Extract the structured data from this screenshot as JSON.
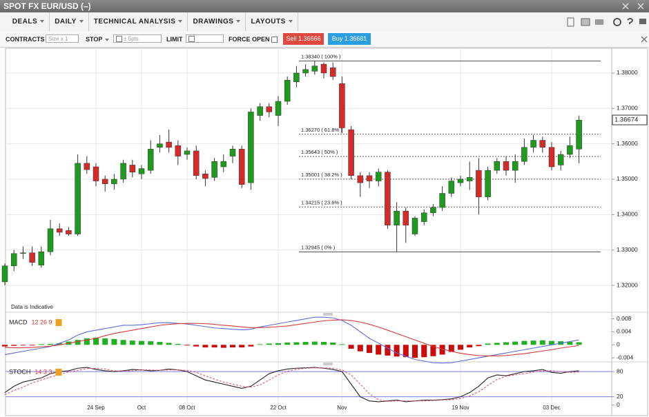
{
  "window": {
    "title": "SPOT FX EUR/USD (–)"
  },
  "menu": [
    "DEALS",
    "DAILY",
    "TECHNICAL ANALYSIS",
    "DRAWINGS",
    "LAYOUTS"
  ],
  "order_bar": {
    "contracts_label": "CONTRACTS",
    "size_placeholder": "Size x 1",
    "stop_label": "STOP",
    "stop_placeholder": "± 5pts",
    "limit_label": "LIMIT",
    "force_open_label": "FORCE OPEN",
    "sell_button": "Sell 1.36666",
    "buy_button": "Buy 1.36681"
  },
  "chart_data": [
    {
      "type": "candlestick",
      "annotation": "Data is Indicative",
      "grid": true,
      "up_color": "#1f9a1f",
      "down_color": "#d42a2a",
      "categories": [
        null,
        null,
        null,
        null,
        null,
        null,
        null,
        null,
        null,
        null,
        "24 Sep",
        null,
        null,
        null,
        null,
        "Oct",
        null,
        null,
        null,
        null,
        "08 Oct",
        null,
        null,
        null,
        null,
        null,
        null,
        null,
        null,
        null,
        "22 Oct",
        null,
        null,
        null,
        null,
        null,
        null,
        "Nov",
        null,
        null,
        null,
        null,
        null,
        null,
        null,
        null,
        null,
        null,
        null,
        null,
        "19 Nov",
        null,
        null,
        null,
        null,
        null,
        null,
        null,
        null,
        null,
        "03 Dec",
        null,
        null,
        null
      ],
      "open": [
        1.321,
        1.3255,
        1.329,
        1.3292,
        1.3257,
        1.3295,
        1.336,
        1.3355,
        1.3345,
        1.3545,
        1.3535,
        1.35,
        1.3487,
        1.35,
        1.354,
        1.3515,
        1.3525,
        1.359,
        1.3605,
        1.3595,
        1.357,
        1.358,
        1.3515,
        1.3505,
        1.3535,
        1.3565,
        1.3585,
        1.349,
        1.368,
        1.3705,
        1.368,
        1.372,
        1.3775,
        1.38,
        1.3805,
        1.3825,
        1.3815,
        1.377,
        1.364,
        1.351,
        1.351,
        1.3495,
        1.352,
        1.337,
        1.341,
        1.3345,
        1.338,
        1.3405,
        1.342,
        1.346,
        1.349,
        1.3495,
        1.3525,
        1.345,
        1.3525,
        1.355,
        1.3525,
        1.355,
        1.359,
        1.361,
        1.359,
        1.354,
        1.357,
        1.3585
      ],
      "high": [
        1.3262,
        1.33,
        1.331,
        1.331,
        1.331,
        1.3385,
        1.3375,
        1.3365,
        1.357,
        1.3565,
        1.3545,
        1.351,
        1.3515,
        1.3555,
        1.3555,
        1.354,
        1.361,
        1.3625,
        1.364,
        1.361,
        1.359,
        1.3595,
        1.3525,
        1.356,
        1.357,
        1.3595,
        1.3595,
        1.37,
        1.3715,
        1.3715,
        1.3735,
        1.379,
        1.382,
        1.3825,
        1.3834,
        1.383,
        1.383,
        1.379,
        1.365,
        1.352,
        1.352,
        1.353,
        1.3525,
        1.3435,
        1.342,
        1.3395,
        1.3415,
        1.343,
        1.348,
        1.3505,
        1.351,
        1.355,
        1.356,
        1.3535,
        1.356,
        1.3565,
        1.357,
        1.3615,
        1.3625,
        1.362,
        1.3605,
        1.358,
        1.362,
        1.368
      ],
      "low": [
        1.32,
        1.324,
        1.3275,
        1.3255,
        1.325,
        1.3285,
        1.334,
        1.334,
        1.334,
        1.3515,
        1.348,
        1.3465,
        1.347,
        1.349,
        1.3505,
        1.35,
        1.3515,
        1.3575,
        1.3575,
        1.354,
        1.3555,
        1.35,
        1.348,
        1.3495,
        1.352,
        1.3545,
        1.3475,
        1.347,
        1.3665,
        1.3675,
        1.365,
        1.371,
        1.376,
        1.379,
        1.3795,
        1.3785,
        1.378,
        1.363,
        1.35,
        1.345,
        1.3475,
        1.348,
        1.336,
        1.3295,
        1.332,
        1.334,
        1.337,
        1.3395,
        1.341,
        1.345,
        1.348,
        1.347,
        1.34,
        1.344,
        1.3515,
        1.351,
        1.349,
        1.354,
        1.3575,
        1.3575,
        1.3525,
        1.3525,
        1.356,
        1.3545
      ],
      "close": [
        1.3255,
        1.329,
        1.3292,
        1.3265,
        1.3295,
        1.336,
        1.335,
        1.3345,
        1.3545,
        1.3527,
        1.3495,
        1.3487,
        1.35,
        1.3545,
        1.352,
        1.353,
        1.3585,
        1.36,
        1.359,
        1.3565,
        1.358,
        1.351,
        1.3502,
        1.355,
        1.355,
        1.3585,
        1.3485,
        1.369,
        1.3705,
        1.369,
        1.372,
        1.378,
        1.38,
        1.381,
        1.382,
        1.38,
        1.379,
        1.3645,
        1.351,
        1.349,
        1.3495,
        1.352,
        1.337,
        1.341,
        1.337,
        1.339,
        1.3405,
        1.342,
        1.346,
        1.3495,
        1.35,
        1.3505,
        1.345,
        1.3525,
        1.355,
        1.3525,
        1.355,
        1.359,
        1.361,
        1.359,
        1.3535,
        1.357,
        1.3595,
        1.3667
      ],
      "ylim": [
        1.3126,
        1.387
      ],
      "yticks": [
        {
          "value": 1.32,
          "label": "1.32000"
        },
        {
          "value": 1.33,
          "label": "1.33000"
        },
        {
          "value": 1.34,
          "label": "1.34000"
        },
        {
          "value": 1.35,
          "label": "1.35000"
        },
        {
          "value": 1.36,
          "label": "1.36000"
        },
        {
          "value": 1.37,
          "label": "1.37000"
        },
        {
          "value": 1.38,
          "label": "1.38000"
        }
      ],
      "last_price": 1.36674,
      "fibonacci": [
        {
          "value": 1.3834,
          "label": "1.38340 ( 100% )",
          "style": "solid"
        },
        {
          "value": 1.3627,
          "label": "1.36270 ( 61.8% )",
          "style": "dotted"
        },
        {
          "value": 1.35643,
          "label": "1.35643 ( 50% )",
          "style": "dotted"
        },
        {
          "value": 1.35001,
          "label": "1.35001 ( 38.2% )",
          "style": "dotted"
        },
        {
          "value": 1.34215,
          "label": "1.34215 ( 23.6% )",
          "style": "dotted"
        },
        {
          "value": 1.32945,
          "label": "1.32945 ( 0% )",
          "style": "solid"
        }
      ]
    },
    {
      "type": "macd",
      "title": "MACD",
      "params": "12 26 9",
      "ylim": [
        -0.0046,
        0.0096
      ],
      "yticks": [
        0.008,
        0.004,
        0,
        -0.004
      ],
      "histogram": {
        "positive_color": "#22b022",
        "negative_color": "#cc0a0a",
        "values": [
          -0.0005,
          -0.0003,
          -0.0002,
          -0.0002,
          0.0002,
          0.0003,
          0.0005,
          0.001,
          0.0015,
          0.002,
          0.0022,
          0.002,
          0.0018,
          0.0015,
          0.0013,
          0.0012,
          0.0011,
          0.0009,
          0.0006,
          0.0003,
          -0.0002,
          -0.0005,
          -0.0008,
          -0.0008,
          -0.0009,
          -0.0008,
          -0.0008,
          -0.0005,
          0.0002,
          0.0004,
          0.0005,
          0.0007,
          0.0008,
          0.0009,
          0.001,
          0.0009,
          0.0007,
          0.0002,
          -0.0012,
          -0.002,
          -0.0025,
          -0.003,
          -0.0033,
          -0.0036,
          -0.0038,
          -0.004,
          -0.0038,
          -0.0035,
          -0.003,
          -0.0022,
          -0.0015,
          -0.0008,
          -0.0004,
          0.0004,
          0.0006,
          0.0008,
          0.001,
          0.0012,
          0.0013,
          0.0014,
          0.0012,
          0.0011,
          0.0009,
          0.0008
        ]
      },
      "series": [
        {
          "color": "#5a6be0",
          "values": [
            -0.003,
            -0.0025,
            -0.002,
            -0.0015,
            -0.001,
            -0.0005,
            0.0005,
            0.0015,
            0.003,
            0.004,
            0.0045,
            0.005,
            0.0055,
            0.006,
            0.006,
            0.0062,
            0.0065,
            0.0068,
            0.0068,
            0.0066,
            0.0064,
            0.006,
            0.0056,
            0.0052,
            0.005,
            0.0048,
            0.0046,
            0.0048,
            0.0055,
            0.006,
            0.0065,
            0.007,
            0.0075,
            0.008,
            0.0085,
            0.0085,
            0.0083,
            0.0075,
            0.006,
            0.004,
            0.002,
            0.0005,
            -0.001,
            -0.0025,
            -0.0035,
            -0.0045,
            -0.005,
            -0.0055,
            -0.0056,
            -0.0055,
            -0.005,
            -0.0045,
            -0.004,
            -0.0035,
            -0.003,
            -0.0025,
            -0.002,
            -0.0015,
            -0.001,
            -0.0005,
            0,
            0.0005,
            0.001,
            0.0015
          ]
        },
        {
          "color": "#d83a3a",
          "values": [
            -0.0008,
            -0.0009,
            -0.0009,
            -0.0008,
            -0.0006,
            -0.0004,
            0,
            0.0005,
            0.001,
            0.0015,
            0.002,
            0.0028,
            0.0035,
            0.004,
            0.0045,
            0.005,
            0.0055,
            0.006,
            0.0063,
            0.0065,
            0.0066,
            0.0066,
            0.0065,
            0.0063,
            0.006,
            0.0058,
            0.0055,
            0.0053,
            0.0053,
            0.0054,
            0.0056,
            0.0058,
            0.0062,
            0.0066,
            0.007,
            0.0074,
            0.0076,
            0.0077,
            0.0075,
            0.007,
            0.0063,
            0.0055,
            0.0045,
            0.0035,
            0.0025,
            0.0015,
            0.0005,
            -0.0005,
            -0.0013,
            -0.002,
            -0.0026,
            -0.003,
            -0.0033,
            -0.0034,
            -0.0034,
            -0.0033,
            -0.003,
            -0.0027,
            -0.0023,
            -0.0019,
            -0.0015,
            -0.001,
            -0.0006,
            -0.0002
          ]
        }
      ]
    },
    {
      "type": "stochastic",
      "title": "STOCH",
      "params": "14 3 3",
      "ylim": [
        -25,
        95
      ],
      "yticks": [
        80,
        20,
        0
      ],
      "levels": [
        80,
        20
      ],
      "level_color": "#7b7be0",
      "series": [
        {
          "color": "#222222",
          "dashed": false,
          "values": [
            30,
            45,
            55,
            60,
            65,
            75,
            80,
            82,
            88,
            90,
            85,
            82,
            80,
            82,
            85,
            84,
            82,
            83,
            86,
            84,
            80,
            70,
            60,
            55,
            50,
            45,
            40,
            45,
            60,
            75,
            82,
            86,
            88,
            89,
            90,
            88,
            85,
            80,
            50,
            20,
            10,
            8,
            10,
            12,
            8,
            10,
            12,
            12,
            13,
            15,
            20,
            30,
            45,
            65,
            72,
            70,
            75,
            80,
            82,
            85,
            78,
            76,
            80,
            82
          ]
        },
        {
          "color": "#e05a78",
          "dashed": true,
          "values": [
            25,
            35,
            43,
            53,
            60,
            67,
            73,
            79,
            83,
            87,
            88,
            86,
            82,
            81,
            82,
            84,
            84,
            83,
            84,
            84,
            83,
            78,
            70,
            62,
            55,
            50,
            45,
            43,
            48,
            60,
            72,
            81,
            85,
            88,
            89,
            89,
            88,
            84,
            72,
            50,
            27,
            13,
            9,
            10,
            10,
            10,
            10,
            11,
            12,
            13,
            16,
            22,
            32,
            47,
            61,
            69,
            72,
            75,
            79,
            82,
            82,
            80,
            78,
            79
          ]
        }
      ]
    }
  ]
}
